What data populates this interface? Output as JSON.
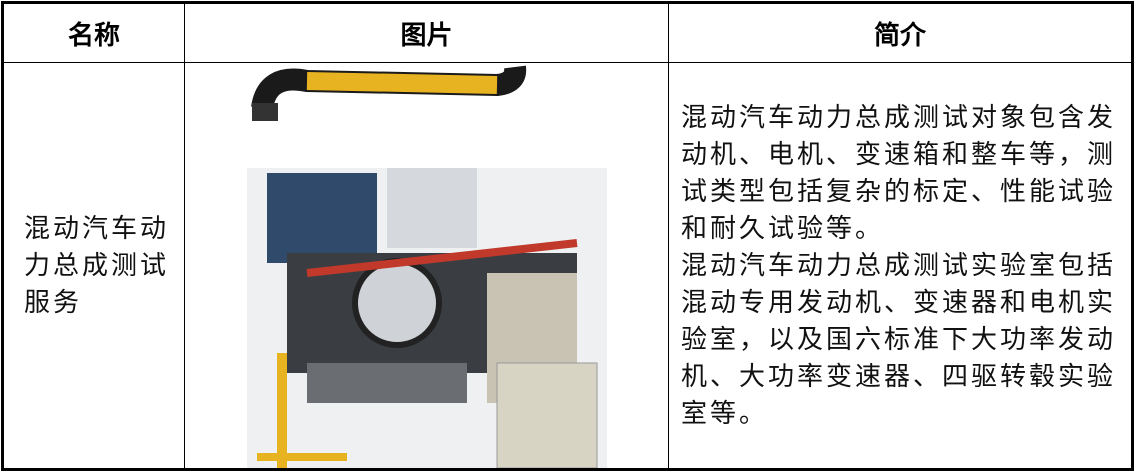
{
  "table": {
    "header": [
      "名称",
      "图片",
      "简介"
    ],
    "rows": [
      [
        "混动汽车动力总成测试服务",
        [
          "混动汽车动力总成测试对象包含发动机、电机、变速箱和整车等，测试类型包括复杂的标定、性能试验和耐久试验等。",
          "混动汽车动力总成测试实验室包括混动专用发动机、变速器和电机实验室，以及国六标准下大功率发动机、大功率变速器、四驱转毂实验室等。"
        ]
      ]
    ]
  }
}
